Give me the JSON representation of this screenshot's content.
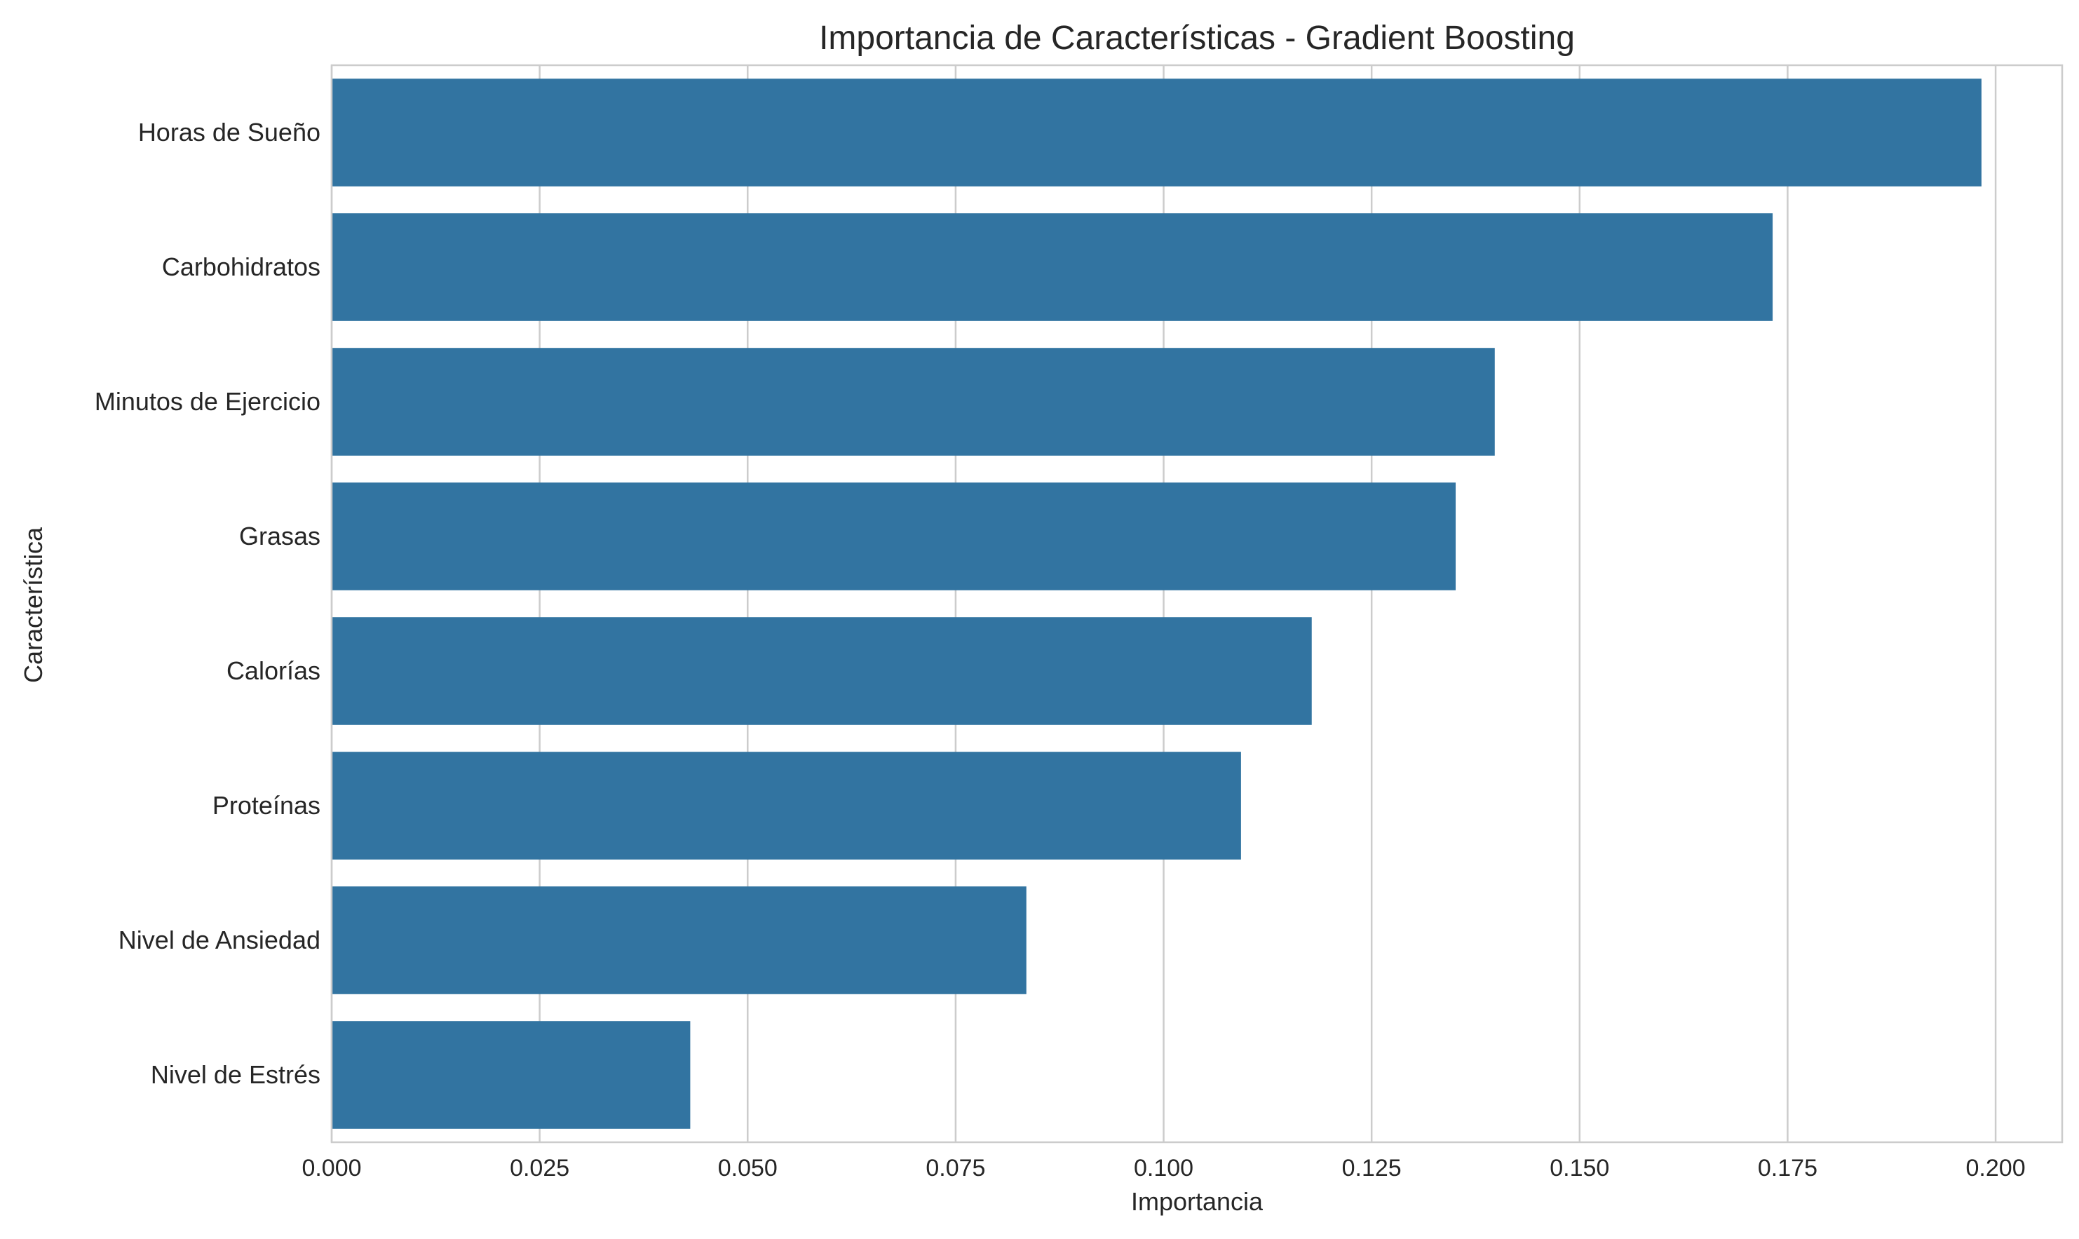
{
  "chart_data": {
    "type": "bar",
    "orientation": "horizontal",
    "title": "Importancia de Características - Gradient Boosting",
    "xlabel": "Importancia",
    "ylabel": "Característica",
    "categories": [
      "Horas de Sueño",
      "Carbohidratos",
      "Minutos de Ejercicio",
      "Grasas",
      "Calorías",
      "Proteínas",
      "Nivel de Ansiedad",
      "Nivel de Estrés"
    ],
    "values": [
      0.1983,
      0.1732,
      0.1398,
      0.1351,
      0.1178,
      0.1093,
      0.0835,
      0.0431
    ],
    "xlim": [
      0,
      0.208
    ],
    "xticks": [
      "0.000",
      "0.025",
      "0.050",
      "0.075",
      "0.100",
      "0.125",
      "0.150",
      "0.175",
      "0.200"
    ],
    "grid": true,
    "legend": "none",
    "bar_color": "#3274a1",
    "grid_color": "#cccccc",
    "text_color": "#262626"
  }
}
